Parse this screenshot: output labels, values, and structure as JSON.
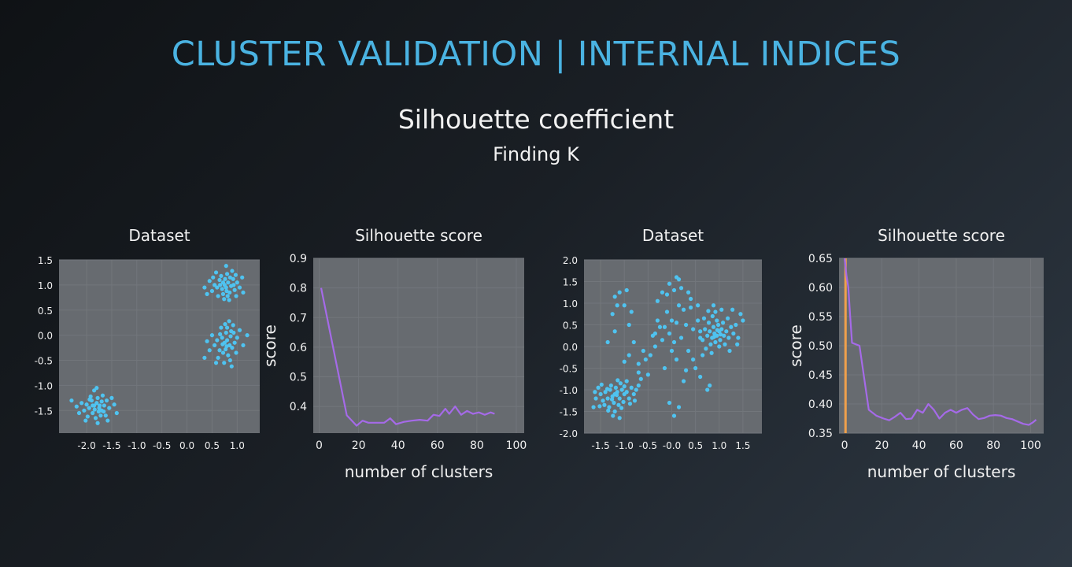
{
  "slide": {
    "title": "CLUSTER VALIDATION | INTERNAL INDICES",
    "subtitle": "Silhouette coefficient",
    "subsubtitle": "Finding K"
  },
  "colors": {
    "title": "#4ab3e2",
    "point": "#4fc3f0",
    "line": "#a56ae8",
    "marker": "#f0a04b",
    "plot_bg": "#676b70"
  },
  "chart_data": [
    {
      "type": "scatter",
      "title": "Dataset",
      "xlabel": "",
      "ylabel": "",
      "xlim": [
        -2.55,
        1.45
      ],
      "ylim": [
        -1.95,
        1.5
      ],
      "xticks": [
        -2.0,
        -1.5,
        -1.0,
        -0.5,
        0.0,
        0.5,
        1.0
      ],
      "xtick_labels": [
        "-2.0",
        "-1.5",
        "-1.0",
        "-0.5",
        "0.0",
        "0.5",
        "1.0"
      ],
      "yticks": [
        1.5,
        1.0,
        0.5,
        0.0,
        -0.5,
        -1.0,
        -1.5
      ],
      "ytick_labels": [
        "1.5",
        "1.0",
        "0.5",
        "0.0",
        "-0.5",
        "-1.0",
        "-1.5"
      ],
      "grid": true,
      "points": [
        [
          0.75,
          1.0
        ],
        [
          0.78,
          0.95
        ],
        [
          0.82,
          1.05
        ],
        [
          0.7,
          0.92
        ],
        [
          0.88,
          0.98
        ],
        [
          0.65,
          1.1
        ],
        [
          0.92,
          1.12
        ],
        [
          0.72,
          0.82
        ],
        [
          0.85,
          0.85
        ],
        [
          0.6,
          0.95
        ],
        [
          0.95,
          0.9
        ],
        [
          0.8,
          1.22
        ],
        [
          0.68,
          1.18
        ],
        [
          0.9,
          1.28
        ],
        [
          0.78,
          1.38
        ],
        [
          0.55,
          1.0
        ],
        [
          0.5,
          0.88
        ],
        [
          1.0,
          1.05
        ],
        [
          1.05,
          0.95
        ],
        [
          0.62,
          0.78
        ],
        [
          0.84,
          0.7
        ],
        [
          0.74,
          0.72
        ],
        [
          0.98,
          0.78
        ],
        [
          0.86,
          1.15
        ],
        [
          0.72,
          1.05
        ],
        [
          0.79,
          0.88
        ],
        [
          0.66,
          1.0
        ],
        [
          0.93,
          1.0
        ],
        [
          1.1,
          1.15
        ],
        [
          0.45,
          1.08
        ],
        [
          0.35,
          0.95
        ],
        [
          0.58,
          1.25
        ],
        [
          0.97,
          1.2
        ],
        [
          0.76,
          1.12
        ],
        [
          0.81,
          0.78
        ],
        [
          1.12,
          0.85
        ],
        [
          0.4,
          0.82
        ],
        [
          0.52,
          1.15
        ],
        [
          0.75,
          -0.15
        ],
        [
          0.8,
          -0.1
        ],
        [
          0.85,
          -0.2
        ],
        [
          0.7,
          -0.05
        ],
        [
          0.9,
          -0.25
        ],
        [
          0.65,
          -0.3
        ],
        [
          0.78,
          0.05
        ],
        [
          0.88,
          0.08
        ],
        [
          0.6,
          -0.1
        ],
        [
          0.95,
          -0.15
        ],
        [
          0.72,
          -0.35
        ],
        [
          0.82,
          -0.4
        ],
        [
          0.68,
          0.15
        ],
        [
          0.92,
          0.2
        ],
        [
          0.55,
          -0.2
        ],
        [
          1.0,
          -0.05
        ],
        [
          0.76,
          0.22
        ],
        [
          0.84,
          0.28
        ],
        [
          0.62,
          -0.45
        ],
        [
          0.98,
          -0.35
        ],
        [
          0.74,
          -0.55
        ],
        [
          0.86,
          -0.5
        ],
        [
          0.5,
          0.0
        ],
        [
          1.05,
          0.1
        ],
        [
          0.45,
          -0.3
        ],
        [
          1.12,
          -0.2
        ],
        [
          0.79,
          -0.22
        ],
        [
          0.71,
          -0.18
        ],
        [
          0.87,
          -0.02
        ],
        [
          0.66,
          0.02
        ],
        [
          0.93,
          0.05
        ],
        [
          0.4,
          -0.12
        ],
        [
          1.2,
          0.0
        ],
        [
          0.58,
          -0.55
        ],
        [
          0.89,
          -0.62
        ],
        [
          0.8,
          0.15
        ],
        [
          0.35,
          -0.45
        ],
        [
          0.77,
          -0.28
        ],
        [
          -1.85,
          -1.4
        ],
        [
          -1.8,
          -1.35
        ],
        [
          -1.75,
          -1.45
        ],
        [
          -1.9,
          -1.3
        ],
        [
          -1.7,
          -1.5
        ],
        [
          -1.95,
          -1.45
        ],
        [
          -1.78,
          -1.25
        ],
        [
          -1.88,
          -1.55
        ],
        [
          -1.65,
          -1.4
        ],
        [
          -2.0,
          -1.38
        ],
        [
          -1.72,
          -1.6
        ],
        [
          -1.82,
          -1.65
        ],
        [
          -1.6,
          -1.3
        ],
        [
          -1.92,
          -1.22
        ],
        [
          -2.05,
          -1.5
        ],
        [
          -1.68,
          -1.2
        ],
        [
          -1.55,
          -1.45
        ],
        [
          -2.1,
          -1.35
        ],
        [
          -1.78,
          -1.75
        ],
        [
          -1.85,
          -1.1
        ],
        [
          -1.62,
          -1.6
        ],
        [
          -1.98,
          -1.62
        ],
        [
          -1.5,
          -1.25
        ],
        [
          -2.15,
          -1.55
        ],
        [
          -1.74,
          -1.4
        ],
        [
          -1.84,
          -1.48
        ],
        [
          -1.66,
          -1.52
        ],
        [
          -1.94,
          -1.28
        ],
        [
          -1.45,
          -1.38
        ],
        [
          -2.2,
          -1.42
        ],
        [
          -1.58,
          -1.7
        ],
        [
          -2.02,
          -1.7
        ],
        [
          -1.8,
          -1.05
        ],
        [
          -1.7,
          -1.32
        ],
        [
          -2.3,
          -1.3
        ],
        [
          -1.4,
          -1.55
        ],
        [
          -1.88,
          -1.4
        ],
        [
          -1.76,
          -1.52
        ]
      ]
    },
    {
      "type": "line",
      "title": "Silhouette score",
      "xlabel": "number of clusters",
      "ylabel": "score",
      "xlim": [
        -3,
        104
      ],
      "ylim": [
        0.31,
        0.9
      ],
      "xticks": [
        0,
        20,
        40,
        60,
        80,
        100
      ],
      "xtick_labels": [
        "0",
        "20",
        "40",
        "60",
        "80",
        "100"
      ],
      "yticks": [
        0.9,
        0.8,
        0.7,
        0.6,
        0.5,
        0.4
      ],
      "ytick_labels": [
        "0.9",
        "0.8",
        "0.7",
        "0.6",
        "0.5",
        "0.4"
      ],
      "grid": true,
      "series": [
        {
          "x": [
            1,
            14,
            19,
            22,
            25,
            30,
            33,
            36,
            39,
            43,
            47,
            51,
            55,
            58,
            61,
            64,
            66,
            69,
            72,
            75,
            78,
            81,
            84,
            87,
            89
          ],
          "y": [
            0.8,
            0.37,
            0.335,
            0.352,
            0.345,
            0.345,
            0.345,
            0.36,
            0.34,
            0.348,
            0.352,
            0.355,
            0.352,
            0.372,
            0.368,
            0.392,
            0.375,
            0.4,
            0.372,
            0.385,
            0.375,
            0.38,
            0.372,
            0.38,
            0.375
          ]
        }
      ]
    },
    {
      "type": "scatter",
      "title": "Dataset",
      "xlabel": "",
      "ylabel": "",
      "xlim": [
        -1.85,
        1.9
      ],
      "ylim": [
        -2.0,
        2.0
      ],
      "xticks": [
        -1.5,
        -1.0,
        -0.5,
        0.0,
        0.5,
        1.0,
        1.5
      ],
      "xtick_labels": [
        "-1.5",
        "-1.0",
        "-0.5",
        "-0.0",
        "0.5",
        "1.0",
        "1.5"
      ],
      "yticks": [
        2.0,
        1.5,
        1.0,
        0.5,
        0.0,
        -0.5,
        -1.0,
        -1.5,
        -2.0
      ],
      "ytick_labels": [
        "2.0",
        "1.5",
        "1.0",
        "0.5",
        "0.0",
        "-0.5",
        "-1.0",
        "-1.5",
        "-2.0"
      ],
      "grid": true,
      "points": [
        [
          -1.2,
          -1.1
        ],
        [
          -1.15,
          -1.05
        ],
        [
          -1.25,
          -1.15
        ],
        [
          -1.1,
          -1.2
        ],
        [
          -1.3,
          -1.0
        ],
        [
          -1.05,
          -1.0
        ],
        [
          -1.35,
          -1.2
        ],
        [
          -1.18,
          -0.95
        ],
        [
          -1.22,
          -1.3
        ],
        [
          -1.0,
          -1.1
        ],
        [
          -1.4,
          -1.05
        ],
        [
          -1.28,
          -0.9
        ],
        [
          -1.12,
          -1.35
        ],
        [
          -0.95,
          -1.05
        ],
        [
          -1.45,
          -1.25
        ],
        [
          -1.32,
          -1.4
        ],
        [
          -1.08,
          -0.85
        ],
        [
          -1.5,
          -1.1
        ],
        [
          -0.9,
          -1.2
        ],
        [
          -1.55,
          -0.95
        ],
        [
          -1.26,
          -1.22
        ],
        [
          -1.16,
          -1.12
        ],
        [
          -1.36,
          -0.98
        ],
        [
          -1.02,
          -1.28
        ],
        [
          -1.42,
          -1.35
        ],
        [
          -1.2,
          -1.5
        ],
        [
          -0.85,
          -0.95
        ],
        [
          -1.6,
          -1.2
        ],
        [
          -1.14,
          -0.78
        ],
        [
          -1.48,
          -0.88
        ],
        [
          -0.8,
          -1.1
        ],
        [
          -1.24,
          -1.6
        ],
        [
          -0.95,
          -0.8
        ],
        [
          -1.34,
          -1.48
        ],
        [
          -1.06,
          -1.42
        ],
        [
          -0.75,
          -1.0
        ],
        [
          -1.62,
          -1.05
        ],
        [
          -1.52,
          -1.38
        ],
        [
          -1.0,
          -0.92
        ],
        [
          -0.88,
          -1.32
        ],
        [
          -1.65,
          -1.4
        ],
        [
          -0.7,
          -0.9
        ],
        [
          -0.78,
          -1.25
        ],
        [
          -1.1,
          -1.65
        ],
        [
          0.9,
          0.3
        ],
        [
          0.95,
          0.25
        ],
        [
          1.0,
          0.35
        ],
        [
          0.85,
          0.2
        ],
        [
          1.05,
          0.4
        ],
        [
          0.8,
          0.35
        ],
        [
          1.1,
          0.25
        ],
        [
          0.92,
          0.1
        ],
        [
          0.98,
          0.5
        ],
        [
          0.88,
          0.45
        ],
        [
          1.15,
          0.35
        ],
        [
          0.75,
          0.25
        ],
        [
          1.02,
          0.15
        ],
        [
          0.82,
          0.05
        ],
        [
          1.08,
          0.55
        ],
        [
          0.95,
          0.6
        ],
        [
          1.2,
          0.2
        ],
        [
          0.7,
          0.4
        ],
        [
          1.12,
          0.05
        ],
        [
          0.78,
          0.55
        ],
        [
          1.25,
          0.45
        ],
        [
          0.86,
          0.7
        ],
        [
          1.0,
          0.0
        ],
        [
          0.65,
          0.15
        ],
        [
          1.3,
          0.3
        ],
        [
          0.92,
          0.8
        ],
        [
          1.18,
          0.65
        ],
        [
          0.72,
          -0.05
        ],
        [
          1.35,
          0.5
        ],
        [
          0.6,
          0.35
        ],
        [
          1.05,
          0.85
        ],
        [
          0.84,
          -0.15
        ],
        [
          1.4,
          0.2
        ],
        [
          0.96,
          0.38
        ],
        [
          0.89,
          0.22
        ],
        [
          1.03,
          0.28
        ],
        [
          1.28,
          0.85
        ],
        [
          1.45,
          0.75
        ],
        [
          1.5,
          0.6
        ],
        [
          0.68,
          0.65
        ],
        [
          0.88,
          0.95
        ],
        [
          1.22,
          -0.1
        ],
        [
          1.38,
          0.05
        ],
        [
          0.77,
          0.82
        ],
        [
          -0.05,
          1.45
        ],
        [
          0.1,
          1.6
        ],
        [
          -0.2,
          1.25
        ],
        [
          0.05,
          1.3
        ],
        [
          -0.1,
          1.2
        ],
        [
          0.2,
          1.35
        ],
        [
          0.35,
          1.25
        ],
        [
          0.4,
          1.1
        ],
        [
          -0.3,
          1.05
        ],
        [
          0.15,
          1.55
        ],
        [
          0.25,
          0.85
        ],
        [
          0.1,
          0.55
        ],
        [
          -0.05,
          0.3
        ],
        [
          -0.2,
          0.15
        ],
        [
          -0.35,
          0.0
        ],
        [
          -0.45,
          -0.2
        ],
        [
          -0.55,
          -0.3
        ],
        [
          0.0,
          0.6
        ],
        [
          0.3,
          0.5
        ],
        [
          0.45,
          0.4
        ],
        [
          -0.1,
          0.8
        ],
        [
          -0.25,
          0.45
        ],
        [
          0.2,
          0.2
        ],
        [
          0.05,
          0.1
        ],
        [
          -0.4,
          0.25
        ],
        [
          -0.6,
          -0.1
        ],
        [
          -0.7,
          -0.4
        ],
        [
          0.6,
          0.2
        ],
        [
          0.55,
          0.6
        ],
        [
          0.35,
          -0.1
        ],
        [
          0.1,
          -0.3
        ],
        [
          -0.15,
          -0.5
        ],
        [
          0.5,
          -0.5
        ],
        [
          0.65,
          -0.2
        ],
        [
          0.25,
          -0.8
        ],
        [
          -0.05,
          -1.3
        ],
        [
          0.15,
          -1.4
        ],
        [
          0.05,
          -1.6
        ],
        [
          0.8,
          -0.9
        ],
        [
          0.75,
          -1.0
        ],
        [
          -0.85,
          0.8
        ],
        [
          -1.1,
          1.25
        ],
        [
          -1.2,
          1.15
        ],
        [
          -0.95,
          1.3
        ],
        [
          -1.15,
          0.95
        ],
        [
          -1.25,
          0.75
        ],
        [
          -1.0,
          0.95
        ],
        [
          -1.2,
          0.35
        ],
        [
          -0.9,
          0.5
        ],
        [
          -1.35,
          0.1
        ],
        [
          -0.8,
          0.1
        ],
        [
          -1.0,
          -0.35
        ],
        [
          -0.7,
          -0.6
        ],
        [
          -0.65,
          -0.75
        ],
        [
          -0.5,
          -0.65
        ],
        [
          0.4,
          0.9
        ],
        [
          -0.3,
          0.6
        ],
        [
          0.15,
          0.95
        ],
        [
          0.55,
          0.95
        ],
        [
          0.45,
          -0.3
        ],
        [
          -0.35,
          0.3
        ],
        [
          0.3,
          -0.55
        ],
        [
          0.0,
          -0.1
        ],
        [
          -0.9,
          -0.2
        ],
        [
          0.6,
          -0.7
        ],
        [
          -0.15,
          0.45
        ]
      ]
    },
    {
      "type": "line",
      "title": "Silhouette score",
      "xlabel": "number of clusters",
      "ylabel": "score",
      "xlim": [
        -3,
        107
      ],
      "ylim": [
        0.35,
        0.65
      ],
      "xticks": [
        0,
        20,
        40,
        60,
        80,
        100
      ],
      "xtick_labels": [
        "0",
        "20",
        "40",
        "60",
        "80",
        "100"
      ],
      "yticks": [
        0.65,
        0.6,
        0.55,
        0.5,
        0.45,
        0.4,
        0.35
      ],
      "ytick_labels": [
        "0.65",
        "0.60",
        "0.55",
        "0.50",
        "0.45",
        "0.40",
        "0.35"
      ],
      "grid": true,
      "vline_x": 0.5,
      "series": [
        {
          "x": [
            0,
            1,
            2,
            3,
            4,
            8,
            13,
            17,
            21,
            24,
            27,
            30,
            33,
            36,
            39,
            42,
            45,
            48,
            51,
            54,
            57,
            60,
            63,
            66,
            69,
            72,
            75,
            78,
            81,
            84,
            87,
            90,
            93,
            96,
            99,
            101,
            103
          ],
          "y": [
            0.65,
            0.62,
            0.6,
            0.55,
            0.505,
            0.5,
            0.39,
            0.38,
            0.375,
            0.372,
            0.378,
            0.385,
            0.374,
            0.375,
            0.39,
            0.385,
            0.4,
            0.39,
            0.375,
            0.385,
            0.39,
            0.385,
            0.39,
            0.393,
            0.382,
            0.374,
            0.376,
            0.38,
            0.381,
            0.38,
            0.376,
            0.374,
            0.37,
            0.366,
            0.364,
            0.368,
            0.373
          ]
        }
      ]
    }
  ]
}
